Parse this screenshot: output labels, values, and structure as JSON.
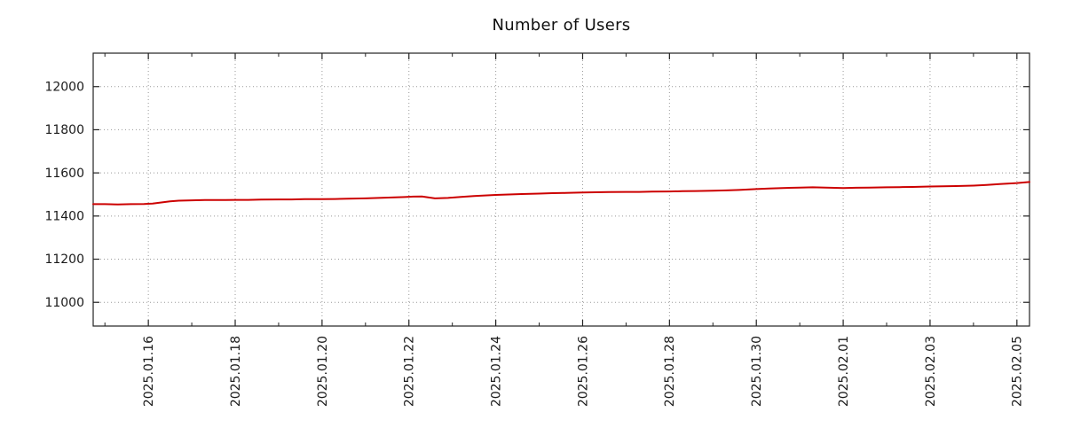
{
  "page": {
    "background": "#ffffff"
  },
  "chart_data": {
    "type": "line",
    "title": "Number of Users",
    "xlabel": "",
    "ylabel": "",
    "legend": "none",
    "grid": "dotted",
    "x_unit": "days since 2025-01-14 00:00",
    "xlim": [
      0.73,
      22.29
    ],
    "ylim": [
      10890,
      12155
    ],
    "colors": {
      "line": "#cc0000",
      "grid": "#999999",
      "axis": "#222222",
      "text": "#1a1a1a",
      "background": "#ffffff"
    },
    "y_ticks": [
      {
        "v": 11000,
        "label": "11000"
      },
      {
        "v": 11200,
        "label": "11200"
      },
      {
        "v": 11400,
        "label": "11400"
      },
      {
        "v": 11600,
        "label": "11600"
      },
      {
        "v": 11800,
        "label": "11800"
      },
      {
        "v": 12000,
        "label": "12000"
      }
    ],
    "x_ticks": [
      {
        "t": 2,
        "label": "2025.01.16"
      },
      {
        "t": 4,
        "label": "2025.01.18"
      },
      {
        "t": 6,
        "label": "2025.01.20"
      },
      {
        "t": 8,
        "label": "2025.01.22"
      },
      {
        "t": 10,
        "label": "2025.01.24"
      },
      {
        "t": 12,
        "label": "2025.01.26"
      },
      {
        "t": 14,
        "label": "2025.01.28"
      },
      {
        "t": 16,
        "label": "2025.01.30"
      },
      {
        "t": 18,
        "label": "2025.02.01"
      },
      {
        "t": 20,
        "label": "2025.02.03"
      },
      {
        "t": 22,
        "label": "2025.02.05"
      }
    ],
    "x_minor_step_days": 1,
    "series": [
      {
        "name": "Number of Users",
        "color": "#cc0000",
        "points": [
          [
            0.73,
            11455
          ],
          [
            1.0,
            11455
          ],
          [
            1.3,
            11454
          ],
          [
            1.6,
            11455
          ],
          [
            1.9,
            11456
          ],
          [
            2.1,
            11458
          ],
          [
            2.3,
            11463
          ],
          [
            2.5,
            11468
          ],
          [
            2.7,
            11471
          ],
          [
            3.0,
            11473
          ],
          [
            3.3,
            11474
          ],
          [
            3.6,
            11474
          ],
          [
            4.0,
            11475
          ],
          [
            4.3,
            11475
          ],
          [
            4.6,
            11476
          ],
          [
            5.0,
            11477
          ],
          [
            5.3,
            11477
          ],
          [
            5.6,
            11478
          ],
          [
            6.0,
            11478
          ],
          [
            6.3,
            11479
          ],
          [
            6.6,
            11480
          ],
          [
            7.0,
            11482
          ],
          [
            7.3,
            11484
          ],
          [
            7.6,
            11486
          ],
          [
            7.9,
            11488
          ],
          [
            8.1,
            11490
          ],
          [
            8.3,
            11491
          ],
          [
            8.6,
            11482
          ],
          [
            8.9,
            11484
          ],
          [
            9.2,
            11489
          ],
          [
            9.5,
            11493
          ],
          [
            9.8,
            11496
          ],
          [
            10.0,
            11498
          ],
          [
            10.3,
            11500
          ],
          [
            10.6,
            11502
          ],
          [
            11.0,
            11504
          ],
          [
            11.3,
            11506
          ],
          [
            11.6,
            11507
          ],
          [
            12.0,
            11509
          ],
          [
            12.3,
            11510
          ],
          [
            12.6,
            11511
          ],
          [
            13.0,
            11512
          ],
          [
            13.3,
            11512
          ],
          [
            13.6,
            11513
          ],
          [
            14.0,
            11514
          ],
          [
            14.3,
            11515
          ],
          [
            14.6,
            11516
          ],
          [
            15.0,
            11517
          ],
          [
            15.3,
            11519
          ],
          [
            15.6,
            11521
          ],
          [
            16.0,
            11525
          ],
          [
            16.3,
            11528
          ],
          [
            16.6,
            11530
          ],
          [
            17.0,
            11532
          ],
          [
            17.3,
            11533
          ],
          [
            17.6,
            11532
          ],
          [
            18.0,
            11530
          ],
          [
            18.3,
            11531
          ],
          [
            18.6,
            11532
          ],
          [
            19.0,
            11533
          ],
          [
            19.3,
            11534
          ],
          [
            19.6,
            11535
          ],
          [
            20.0,
            11537
          ],
          [
            20.3,
            11538
          ],
          [
            20.6,
            11539
          ],
          [
            21.0,
            11541
          ],
          [
            21.3,
            11544
          ],
          [
            21.6,
            11548
          ],
          [
            22.0,
            11553
          ],
          [
            22.29,
            11558
          ]
        ]
      }
    ]
  }
}
